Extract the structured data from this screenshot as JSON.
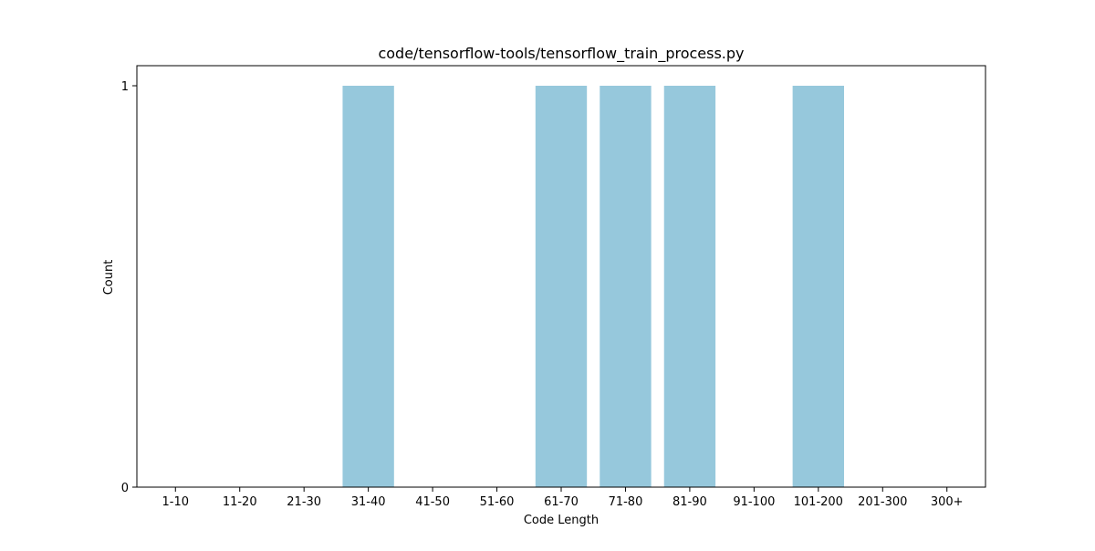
{
  "chart_data": {
    "type": "bar",
    "title": "code/tensorflow-tools/tensorflow_train_process.py",
    "xlabel": "Code Length",
    "ylabel": "Count",
    "categories": [
      "1-10",
      "11-20",
      "21-30",
      "31-40",
      "41-50",
      "51-60",
      "61-70",
      "71-80",
      "81-90",
      "91-100",
      "101-200",
      "201-300",
      "300+"
    ],
    "values": [
      0,
      0,
      0,
      1,
      0,
      0,
      1,
      1,
      1,
      0,
      1,
      0,
      0
    ],
    "ylim": [
      0,
      1
    ],
    "yticks": [
      "0",
      "1"
    ],
    "grid": false,
    "bar_color": "#96c8dc"
  }
}
